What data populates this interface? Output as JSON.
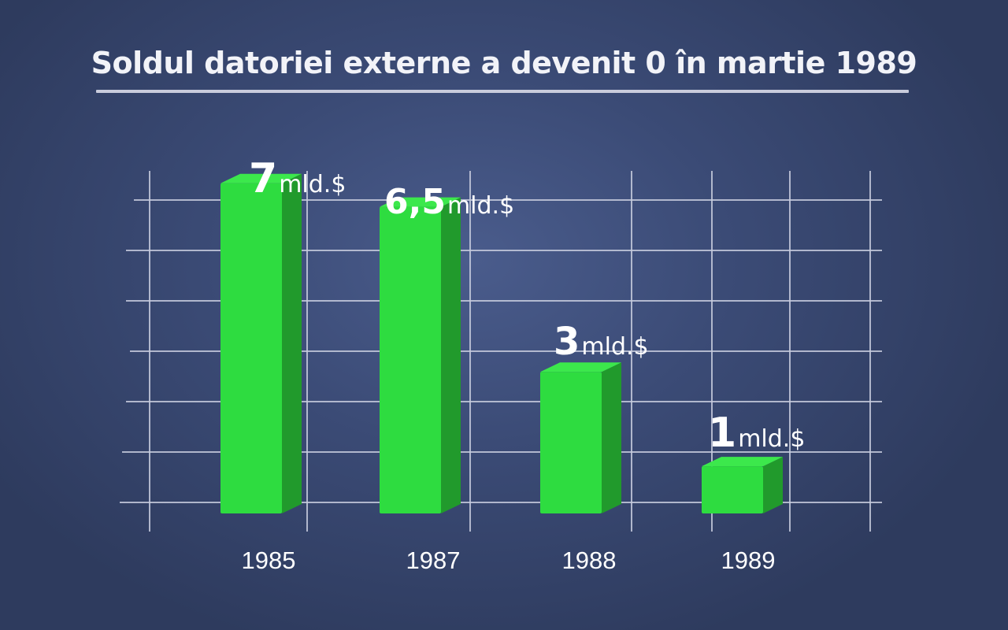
{
  "title": "Soldul datoriei externe a devenit 0 în martie 1989",
  "chart_data": {
    "type": "bar",
    "title": "Soldul datoriei externe a devenit 0 în martie 1989",
    "categories": [
      "1985",
      "1987",
      "1988",
      "1989"
    ],
    "values": [
      7,
      6.5,
      3,
      1
    ],
    "value_labels": [
      "7",
      "6,5",
      "3",
      "1"
    ],
    "unit": "mld.$",
    "ylim": [
      0,
      7.5
    ],
    "grid": true,
    "bar_color": "#2edc40",
    "bar_side_color": "#219a2c",
    "bar_top_color": "#3ce84c",
    "grid_color": "#c7cbdd"
  }
}
